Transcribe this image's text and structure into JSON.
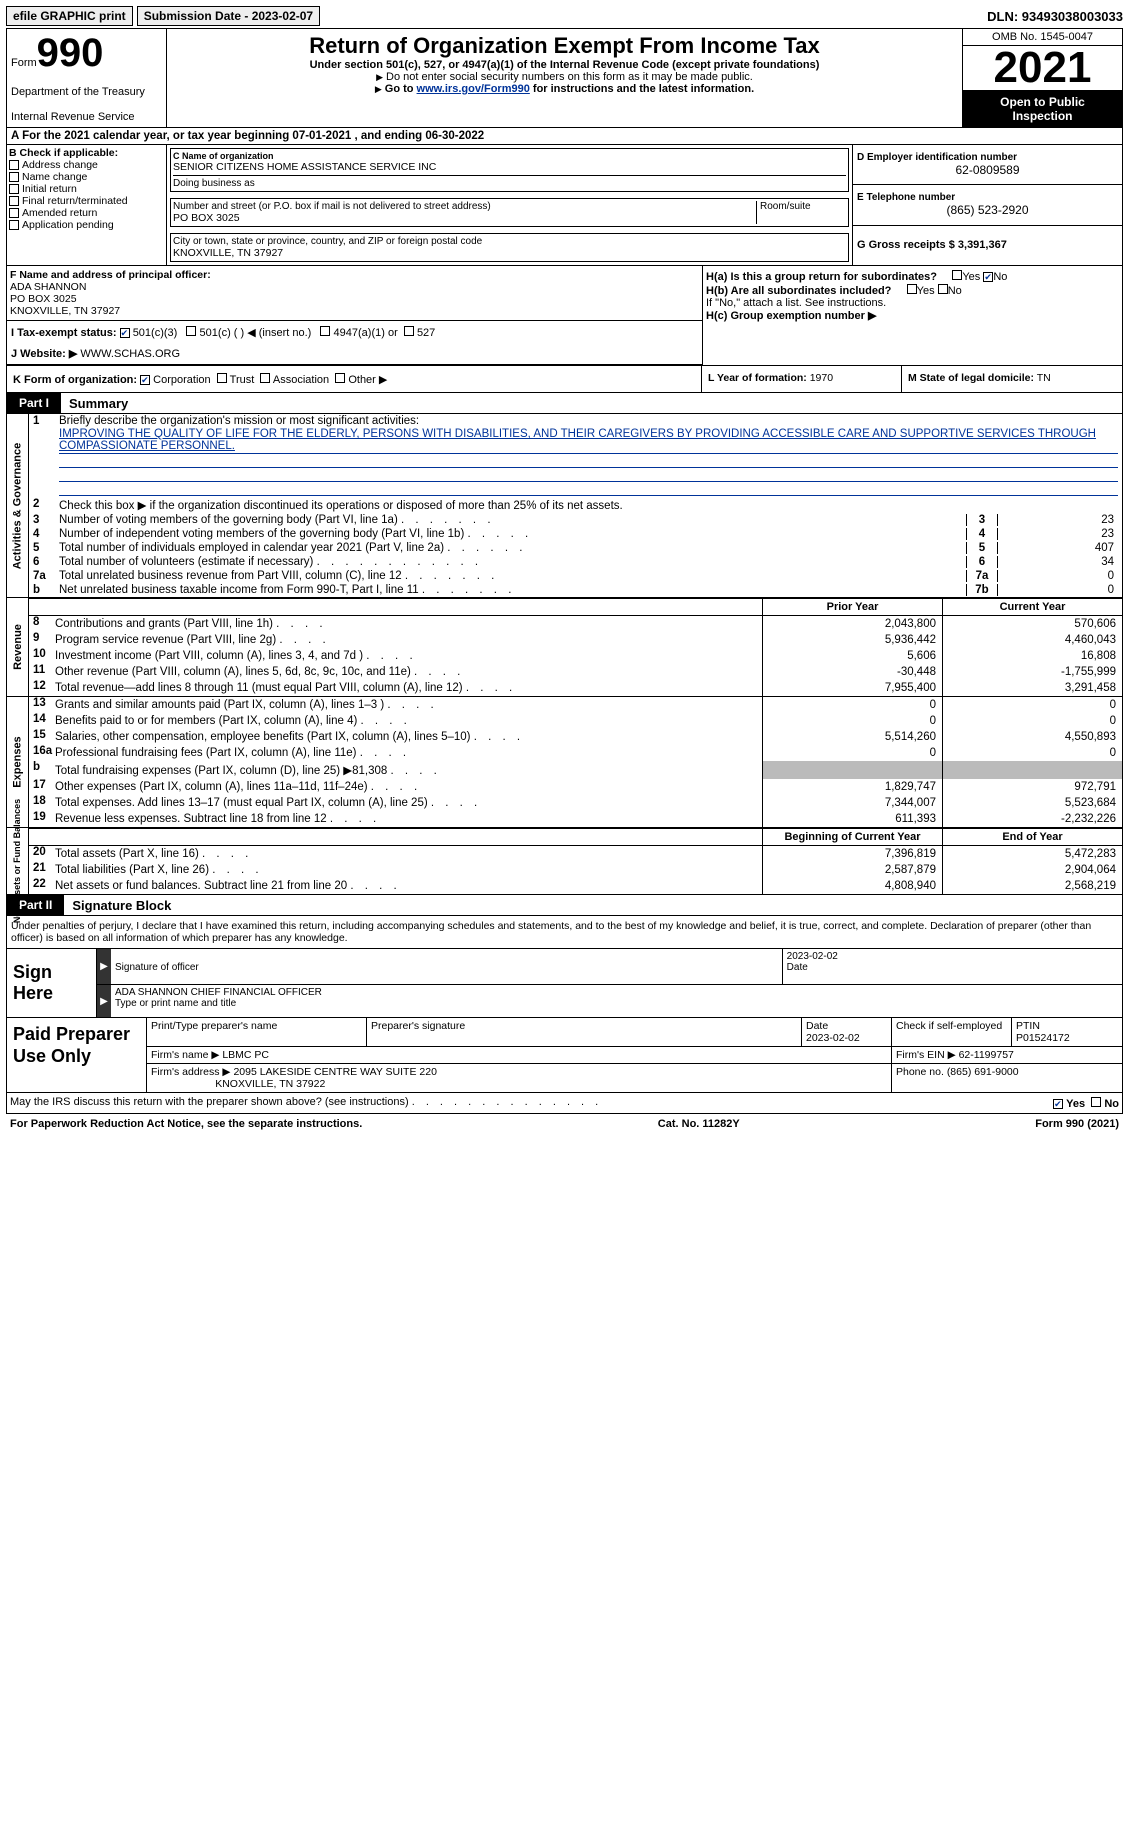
{
  "topbar": {
    "efile_label": "efile GRAPHIC print",
    "submission_label": "Submission Date - 2023-02-07",
    "dln_label": "DLN: 93493038003033"
  },
  "header": {
    "form_label": "Form",
    "form_number": "990",
    "title": "Return of Organization Exempt From Income Tax",
    "subtitle": "Under section 501(c), 527, or 4947(a)(1) of the Internal Revenue Code (except private foundations)",
    "note1": "Do not enter social security numbers on this form as it may be made public.",
    "note2_prefix": "Go to ",
    "note2_link": "www.irs.gov/Form990",
    "note2_suffix": " for instructions and the latest information.",
    "dept": "Department of the Treasury",
    "irs": "Internal Revenue Service",
    "omb": "OMB No. 1545-0047",
    "year": "2021",
    "open1": "Open to Public",
    "open2": "Inspection"
  },
  "row_a": "A For the 2021 calendar year, or tax year beginning 07-01-2021    , and ending 06-30-2022",
  "box_b": {
    "title": "B Check if applicable:",
    "opts": [
      "Address change",
      "Name change",
      "Initial return",
      "Final return/terminated",
      "Amended return",
      "Application pending"
    ]
  },
  "box_c": {
    "name_label": "C Name of organization",
    "name": "SENIOR CITIZENS HOME ASSISTANCE SERVICE INC",
    "dba_label": "Doing business as",
    "street_label": "Number and street (or P.O. box if mail is not delivered to street address)",
    "street": "PO BOX 3025",
    "room_label": "Room/suite",
    "city_label": "City or town, state or province, country, and ZIP or foreign postal code",
    "city": "KNOXVILLE, TN  37927"
  },
  "box_d": {
    "ein_label": "D Employer identification number",
    "ein": "62-0809589",
    "phone_label": "E Telephone number",
    "phone": "(865) 523-2920",
    "gross_label": "G Gross receipts $",
    "gross": "3,391,367"
  },
  "box_f": {
    "label": "F  Name and address of principal officer:",
    "name": "ADA SHANNON",
    "addr1": "PO BOX 3025",
    "addr2": "KNOXVILLE, TN  37927"
  },
  "box_h": {
    "ha": "H(a)  Is this a group return for subordinates?",
    "hb": "H(b)  Are all subordinates included?",
    "hb_note": "If \"No,\" attach a list. See instructions.",
    "hc": "H(c)  Group exemption number ▶",
    "yes": "Yes",
    "no": "No"
  },
  "tax_status": {
    "label": "I  Tax-exempt status:",
    "o1": "501(c)(3)",
    "o2": "501(c) (  ) ◀ (insert no.)",
    "o3": "4947(a)(1) or",
    "o4": "527"
  },
  "website": {
    "label": "J  Website: ▶",
    "val": "WWW.SCHAS.ORG"
  },
  "row_k": {
    "label": "K Form of organization:",
    "opts": [
      "Corporation",
      "Trust",
      "Association",
      "Other ▶"
    ]
  },
  "row_l": {
    "label": "L Year of formation:",
    "val": "1970"
  },
  "row_m": {
    "label": "M State of legal domicile:",
    "val": "TN"
  },
  "parts": {
    "p1": "Part I",
    "p1_title": "Summary",
    "p2": "Part II",
    "p2_title": "Signature Block"
  },
  "summary": {
    "l1": "Briefly describe the organization's mission or most significant activities:",
    "mission": "IMPROVING THE QUALITY OF LIFE FOR THE ELDERLY, PERSONS WITH DISABILITIES, AND THEIR CAREGIVERS BY PROVIDING ACCESSIBLE CARE AND SUPPORTIVE SERVICES THROUGH COMPASSIONATE PERSONNEL.",
    "l2": "Check this box ▶      if the organization discontinued its operations or disposed of more than 25% of its net assets.",
    "l3": {
      "t": "Number of voting members of the governing body (Part VI, line 1a)",
      "v": "23"
    },
    "l4": {
      "t": "Number of independent voting members of the governing body (Part VI, line 1b)",
      "v": "23"
    },
    "l5": {
      "t": "Total number of individuals employed in calendar year 2021 (Part V, line 2a)",
      "v": "407"
    },
    "l6": {
      "t": "Total number of volunteers (estimate if necessary)",
      "v": "34"
    },
    "l7a": {
      "t": "Total unrelated business revenue from Part VIII, column (C), line 12",
      "v": "0"
    },
    "l7b": {
      "t": "Net unrelated business taxable income from Form 990-T, Part I, line 11",
      "v": "0"
    },
    "hdr_prior": "Prior Year",
    "hdr_curr": "Current Year",
    "hdr_beg": "Beginning of Current Year",
    "hdr_end": "End of Year"
  },
  "revenue": [
    {
      "n": "8",
      "t": "Contributions and grants (Part VIII, line 1h)",
      "p": "2,043,800",
      "c": "570,606"
    },
    {
      "n": "9",
      "t": "Program service revenue (Part VIII, line 2g)",
      "p": "5,936,442",
      "c": "4,460,043"
    },
    {
      "n": "10",
      "t": "Investment income (Part VIII, column (A), lines 3, 4, and 7d )",
      "p": "5,606",
      "c": "16,808"
    },
    {
      "n": "11",
      "t": "Other revenue (Part VIII, column (A), lines 5, 6d, 8c, 9c, 10c, and 11e)",
      "p": "-30,448",
      "c": "-1,755,999"
    },
    {
      "n": "12",
      "t": "Total revenue—add lines 8 through 11 (must equal Part VIII, column (A), line 12)",
      "p": "7,955,400",
      "c": "3,291,458"
    }
  ],
  "expenses": [
    {
      "n": "13",
      "t": "Grants and similar amounts paid (Part IX, column (A), lines 1–3 )",
      "p": "0",
      "c": "0"
    },
    {
      "n": "14",
      "t": "Benefits paid to or for members (Part IX, column (A), line 4)",
      "p": "0",
      "c": "0"
    },
    {
      "n": "15",
      "t": "Salaries, other compensation, employee benefits (Part IX, column (A), lines 5–10)",
      "p": "5,514,260",
      "c": "4,550,893"
    },
    {
      "n": "16a",
      "t": "Professional fundraising fees (Part IX, column (A), line 11e)",
      "p": "0",
      "c": "0"
    },
    {
      "n": "b",
      "t": "Total fundraising expenses (Part IX, column (D), line 25) ▶81,308",
      "p": "",
      "c": "",
      "shade": true
    },
    {
      "n": "17",
      "t": "Other expenses (Part IX, column (A), lines 11a–11d, 11f–24e)",
      "p": "1,829,747",
      "c": "972,791"
    },
    {
      "n": "18",
      "t": "Total expenses. Add lines 13–17 (must equal Part IX, column (A), line 25)",
      "p": "7,344,007",
      "c": "5,523,684"
    },
    {
      "n": "19",
      "t": "Revenue less expenses. Subtract line 18 from line 12",
      "p": "611,393",
      "c": "-2,232,226"
    }
  ],
  "netassets": [
    {
      "n": "20",
      "t": "Total assets (Part X, line 16)",
      "p": "7,396,819",
      "c": "5,472,283"
    },
    {
      "n": "21",
      "t": "Total liabilities (Part X, line 26)",
      "p": "2,587,879",
      "c": "2,904,064"
    },
    {
      "n": "22",
      "t": "Net assets or fund balances. Subtract line 21 from line 20",
      "p": "4,808,940",
      "c": "2,568,219"
    }
  ],
  "vtabs": {
    "ag": "Activities & Governance",
    "rev": "Revenue",
    "exp": "Expenses",
    "na": "Net Assets or Fund Balances"
  },
  "penalty": "Under penalties of perjury, I declare that I have examined this return, including accompanying schedules and statements, and to the best of my knowledge and belief, it is true, correct, and complete. Declaration of preparer (other than officer) is based on all information of which preparer has any knowledge.",
  "sign": {
    "here": "Sign Here",
    "sig_label": "Signature of officer",
    "date_label": "Date",
    "date": "2023-02-02",
    "name": "ADA SHANNON  CHIEF FINANCIAL OFFICER",
    "name_label": "Type or print name and title"
  },
  "prep": {
    "title": "Paid Preparer Use Only",
    "h1": "Print/Type preparer's name",
    "h2": "Preparer's signature",
    "h3": "Date",
    "h3v": "2023-02-02",
    "h4": "Check       if self-employed",
    "h5": "PTIN",
    "h5v": "P01524172",
    "firm_label": "Firm's name   ▶",
    "firm": "LBMC PC",
    "ein_label": "Firm's EIN ▶",
    "ein": "62-1199757",
    "addr_label": "Firm's address ▶",
    "addr1": "2095 LAKESIDE CENTRE WAY SUITE 220",
    "addr2": "KNOXVILLE, TN  37922",
    "phone_label": "Phone no.",
    "phone": "(865) 691-9000"
  },
  "discuss": {
    "t": "May the IRS discuss this return with the preparer shown above? (see instructions)",
    "yes": "Yes",
    "no": "No"
  },
  "footer": {
    "l": "For Paperwork Reduction Act Notice, see the separate instructions.",
    "m": "Cat. No. 11282Y",
    "r": "Form 990 (2021)"
  }
}
